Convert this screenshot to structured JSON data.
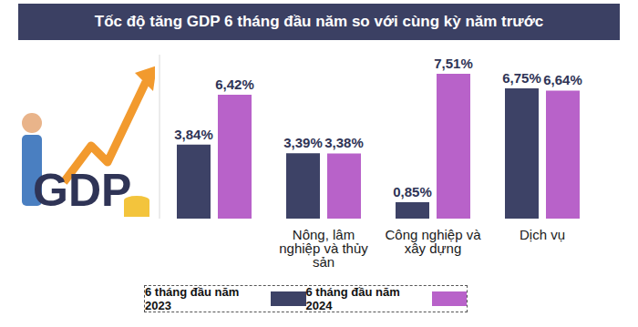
{
  "chart_data": {
    "type": "bar",
    "title": "Tốc độ tăng GDP 6 tháng đầu năm so với cùng kỳ năm trước",
    "annotations": [
      "GDP"
    ],
    "categories": [
      null,
      "Nông, lâm nghiệp và thủy sản",
      "Công nghiệp và xây dựng",
      "Dịch vụ"
    ],
    "series": [
      {
        "name": "6 tháng đầu năm 2023",
        "color": "#3d4266",
        "values": [
          3.84,
          3.39,
          0.85,
          6.75
        ],
        "value_labels": [
          "3,84%",
          "3,39%",
          "0,85%",
          "6,75%"
        ]
      },
      {
        "name": "6 tháng đầu năm 2024",
        "color": "#b862c9",
        "values": [
          6.42,
          3.38,
          7.51,
          6.64
        ],
        "value_labels": [
          "6,42%",
          "3,38%",
          "7,51%",
          "6,64%"
        ]
      }
    ],
    "ylim": [
      0,
      8.5
    ],
    "data_labels": true,
    "tick_labels": "x",
    "grid": false,
    "legend": "bottom"
  }
}
